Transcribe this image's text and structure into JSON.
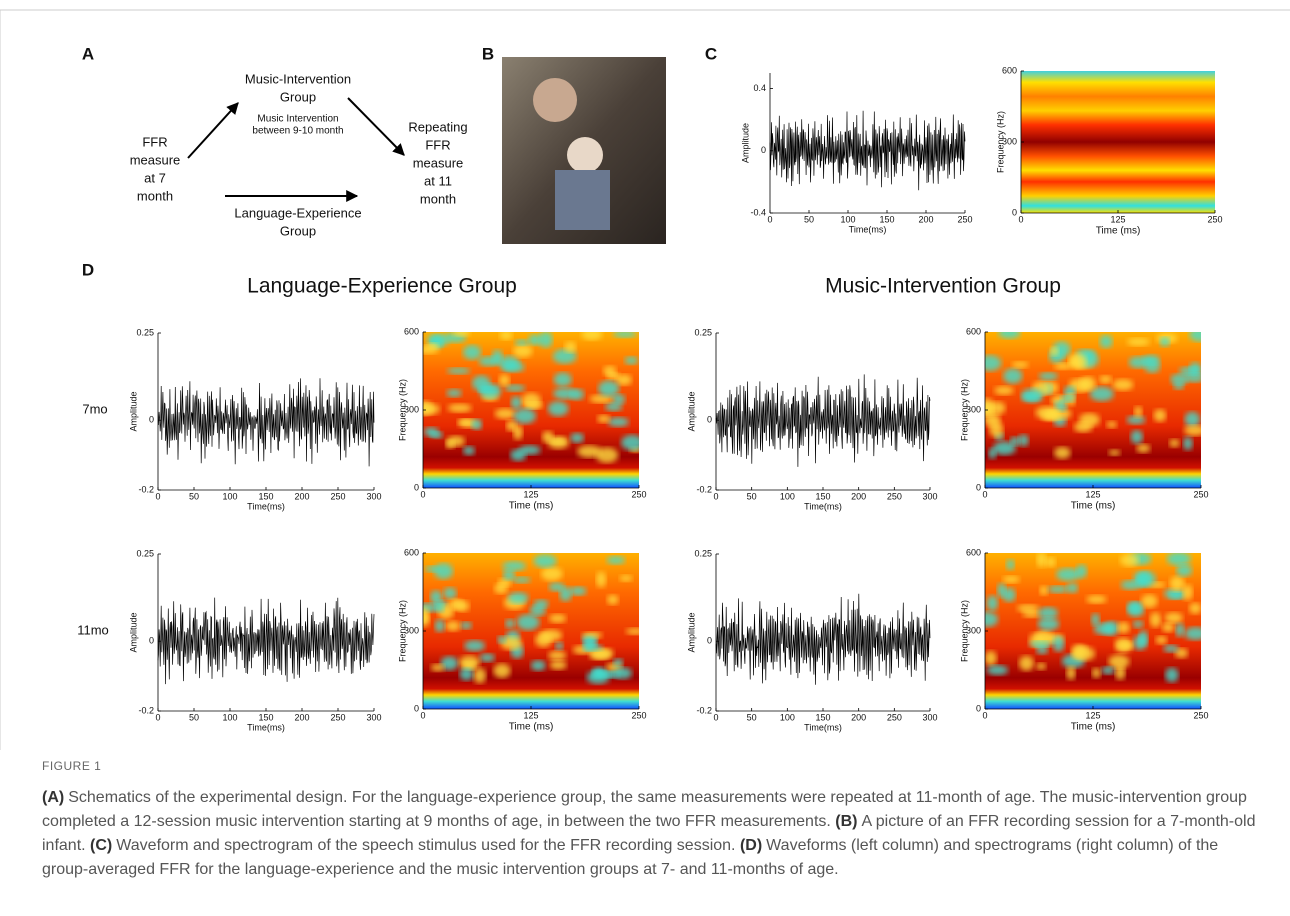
{
  "panel_a": {
    "label": "A",
    "start": [
      "FFR",
      "measure",
      "at 7",
      "month"
    ],
    "music_group": [
      "Music-Intervention",
      "Group"
    ],
    "music_note": [
      "Music Intervention",
      "between 9-10 month"
    ],
    "end": [
      "Repeating",
      "FFR",
      "measure",
      "at 11",
      "month"
    ],
    "language_group": [
      "Language-Experience",
      "Group"
    ]
  },
  "panel_b": {
    "label": "B"
  },
  "panel_c": {
    "label": "C",
    "waveform": {
      "ylabel": "Amplitude",
      "xlabel": "Time(ms)",
      "xlim": [
        0,
        250
      ],
      "xticks": [
        0,
        50,
        100,
        150,
        200,
        250
      ],
      "ylim": [
        -0.4,
        0.5
      ],
      "yticks": [
        -0.4,
        0,
        0.4
      ]
    },
    "spectrogram": {
      "ylabel": "Frequency (Hz)",
      "xlabel": "Time (ms)",
      "xlim": [
        0,
        250
      ],
      "xticks": [
        0,
        125,
        250
      ],
      "ylim": [
        0,
        600
      ],
      "yticks": [
        0,
        300,
        600
      ]
    }
  },
  "panel_d": {
    "label": "D",
    "groups": [
      "Language-Experience Group",
      "Music-Intervention Group"
    ],
    "rows": [
      "7mo",
      "11mo"
    ],
    "waveform": {
      "ylabel": "Amplitude",
      "xlabel": "Time(ms)",
      "xlim": [
        0,
        300
      ],
      "xticks": [
        0,
        50,
        100,
        150,
        200,
        250,
        300
      ],
      "ylim": [
        -0.2,
        0.25
      ],
      "yticks": [
        -0.2,
        0,
        0.25
      ]
    },
    "spectrogram": {
      "ylabel": "Frequency (Hz)",
      "xlabel": "Time (ms)",
      "xlim": [
        0,
        250
      ],
      "xticks": [
        0,
        125,
        250
      ],
      "ylim": [
        0,
        600
      ],
      "yticks": [
        0,
        300,
        600
      ]
    }
  },
  "caption": {
    "figure_label": "FIGURE 1",
    "parts": [
      {
        "tag": "(A)",
        "text": "Schematics of the experimental design. For the language-experience group, the same measurements were repeated at 11-month of age. The music-intervention group completed a 12-session music intervention starting at 9 months of age, in between the two FFR measurements."
      },
      {
        "tag": "(B)",
        "text": "A picture of an FFR recording session for a 7-month-old infant."
      },
      {
        "tag": "(C)",
        "text": "Waveform and spectrogram of the speech stimulus used for the FFR recording session."
      },
      {
        "tag": "(D)",
        "text": "Waveforms (left column) and spectrograms (right column) of the group-averaged FFR for the language-experience and the music intervention groups at 7- and 11-months of age."
      }
    ]
  }
}
